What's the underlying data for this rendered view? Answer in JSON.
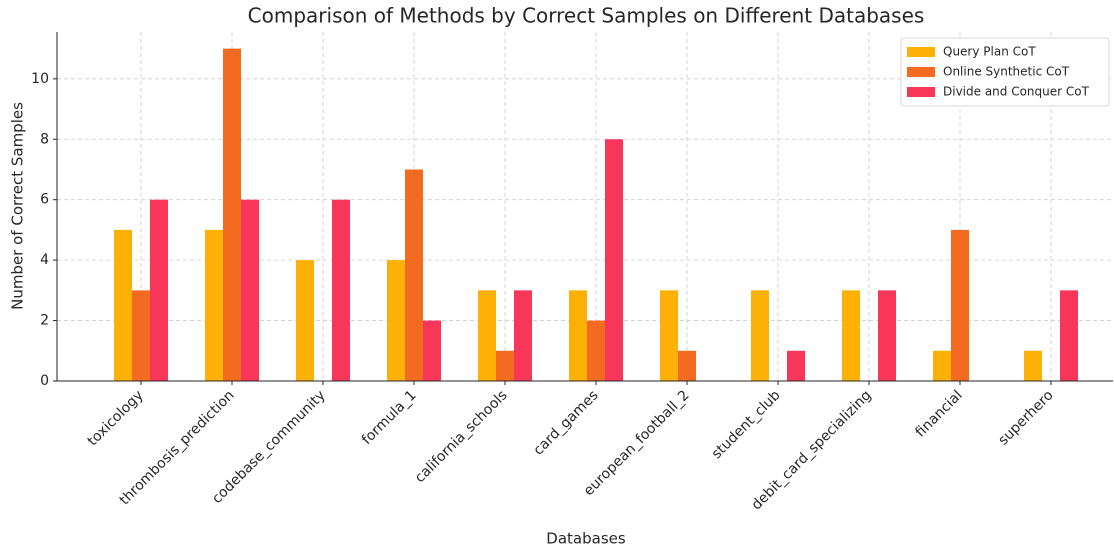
{
  "chart_data": {
    "type": "bar",
    "title": "Comparison of Methods by Correct Samples on Different Databases",
    "x_label": "Databases",
    "y_label": "Number of Correct Samples",
    "categories": [
      "toxicology",
      "thrombosis_prediction",
      "codebase_community",
      "formula_1",
      "california_schools",
      "card_games",
      "european_football_2",
      "student_club",
      "debit_card_specializing",
      "financial",
      "superhero"
    ],
    "series": [
      {
        "name": "Query Plan CoT",
        "color": "#fdb005",
        "values": [
          5,
          5,
          4,
          4,
          3,
          3,
          3,
          3,
          3,
          1,
          1
        ]
      },
      {
        "name": "Online Synthetic CoT",
        "color": "#f26b21",
        "values": [
          3,
          11,
          0,
          7,
          1,
          2,
          1,
          0,
          0,
          5,
          0
        ]
      },
      {
        "name": "Divide and Conquer CoT",
        "color": "#f7365a",
        "values": [
          6,
          6,
          6,
          2,
          3,
          8,
          0,
          1,
          3,
          0,
          3
        ]
      }
    ],
    "ylim": [
      0,
      11.55
    ],
    "yticks": [
      0,
      2,
      4,
      6,
      8,
      10
    ],
    "grid": true,
    "legend": "upper right"
  }
}
